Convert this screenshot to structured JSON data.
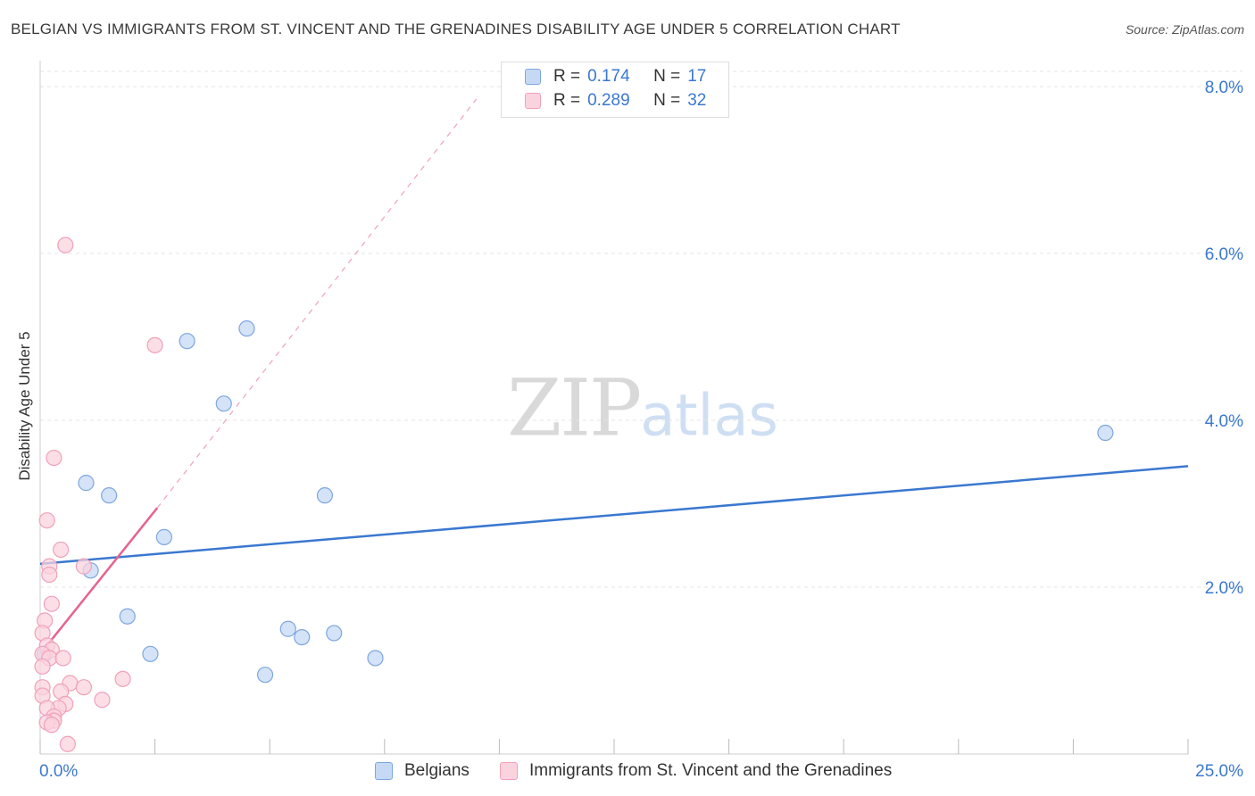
{
  "title": "BELGIAN VS IMMIGRANTS FROM ST. VINCENT AND THE GRENADINES DISABILITY AGE UNDER 5 CORRELATION CHART",
  "source": "Source: ZipAtlas.com",
  "watermark": {
    "zip": "ZIP",
    "atlas": "atlas"
  },
  "legend": {
    "r_label": "R =",
    "n_label": "N =",
    "rows": [
      {
        "r": "0.174",
        "n": "17"
      },
      {
        "r": "0.289",
        "n": "32"
      }
    ]
  },
  "bottom_legend": [
    "Belgians",
    "Immigrants from St. Vincent and the Grenadines"
  ],
  "colors": {
    "blue": "#3a78d0",
    "blue_fill": "#c5d9f5",
    "blue_stroke": "#7ea6df",
    "pink": "#e8628f",
    "pink_fill": "#fbd3df",
    "pink_stroke": "#f0a1ba",
    "grid": "#e4e4e4",
    "axis_text": "#3a78d0"
  },
  "chart_data": {
    "type": "scatter",
    "title": "BELGIAN VS IMMIGRANTS FROM ST. VINCENT AND THE GRENADINES DISABILITY AGE UNDER 5 CORRELATION CHART",
    "xlabel": "",
    "ylabel": "Disability Age Under 5",
    "xlim": [
      0,
      25
    ],
    "ylim": [
      0,
      8.2
    ],
    "x_tick_labels": [
      "0.0%",
      "25.0%"
    ],
    "y_ticks": [
      2,
      4,
      6,
      8
    ],
    "y_tick_labels": [
      "2.0%",
      "4.0%",
      "6.0%",
      "8.0%"
    ],
    "grid": true,
    "series": [
      {
        "name": "Belgians",
        "color": "blue",
        "r": 0.174,
        "n": 17,
        "points": [
          [
            0.1,
            1.2
          ],
          [
            1.1,
            2.2
          ],
          [
            1.0,
            3.25
          ],
          [
            1.5,
            3.1
          ],
          [
            1.9,
            1.65
          ],
          [
            2.4,
            1.2
          ],
          [
            2.7,
            2.6
          ],
          [
            3.2,
            4.95
          ],
          [
            4.0,
            4.2
          ],
          [
            4.5,
            5.1
          ],
          [
            4.9,
            0.95
          ],
          [
            5.4,
            1.5
          ],
          [
            5.7,
            1.4
          ],
          [
            6.2,
            3.1
          ],
          [
            6.4,
            1.45
          ],
          [
            7.3,
            1.15
          ],
          [
            23.2,
            3.85
          ]
        ],
        "trend": {
          "x": [
            0,
            25
          ],
          "y": [
            2.28,
            3.45
          ]
        }
      },
      {
        "name": "Immigrants from St. Vincent and the Grenadines",
        "color": "pink",
        "r": 0.289,
        "n": 32,
        "points": [
          [
            0.55,
            6.1
          ],
          [
            2.5,
            4.9
          ],
          [
            0.3,
            3.55
          ],
          [
            0.15,
            2.8
          ],
          [
            0.45,
            2.45
          ],
          [
            0.2,
            2.25
          ],
          [
            0.2,
            2.15
          ],
          [
            0.95,
            2.25
          ],
          [
            0.25,
            1.8
          ],
          [
            0.1,
            1.6
          ],
          [
            0.05,
            1.45
          ],
          [
            0.15,
            1.3
          ],
          [
            0.25,
            1.25
          ],
          [
            0.05,
            1.2
          ],
          [
            0.2,
            1.15
          ],
          [
            0.5,
            1.15
          ],
          [
            0.05,
            1.05
          ],
          [
            0.65,
            0.85
          ],
          [
            0.95,
            0.8
          ],
          [
            1.8,
            0.9
          ],
          [
            0.45,
            0.75
          ],
          [
            0.05,
            0.8
          ],
          [
            0.05,
            0.7
          ],
          [
            1.35,
            0.65
          ],
          [
            0.55,
            0.6
          ],
          [
            0.4,
            0.55
          ],
          [
            0.15,
            0.55
          ],
          [
            0.3,
            0.45
          ],
          [
            0.3,
            0.4
          ],
          [
            0.15,
            0.38
          ],
          [
            0.25,
            0.35
          ],
          [
            0.6,
            0.12
          ]
        ],
        "trend": {
          "x": [
            0,
            2.55
          ],
          "y": [
            1.2,
            2.95
          ]
        },
        "trend_extension": {
          "x": [
            2.55,
            9.5
          ],
          "y": [
            2.95,
            7.85
          ]
        }
      }
    ]
  }
}
